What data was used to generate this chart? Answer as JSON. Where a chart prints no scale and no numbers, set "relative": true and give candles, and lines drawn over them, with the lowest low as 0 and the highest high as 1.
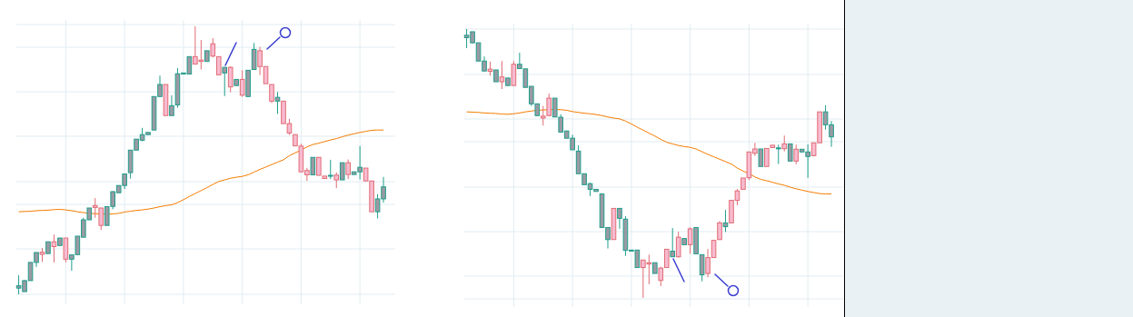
{
  "chart_data": [
    {
      "type": "candlestick",
      "relative": true,
      "grid": true,
      "categories": [
        null,
        null,
        null,
        null,
        null,
        null,
        null,
        null,
        null,
        null,
        null,
        null,
        null,
        null,
        null,
        null,
        null,
        null,
        null,
        null,
        null,
        null,
        null,
        null,
        null,
        null,
        null,
        null,
        null,
        null,
        null,
        null,
        null,
        null,
        null,
        null,
        null,
        null,
        null,
        null,
        null,
        null,
        null,
        null,
        null,
        null,
        null,
        null,
        null,
        null,
        null,
        null,
        null,
        null,
        null,
        null,
        null,
        null,
        null,
        null,
        null,
        null,
        null
      ],
      "ohlc": [
        [
          0.023,
          0.071,
          0,
          0.032
        ],
        [
          0.01,
          0.054,
          0.01,
          0.051
        ],
        [
          0.051,
          0.119,
          0.051,
          0.119
        ],
        [
          0.119,
          0.156,
          0.102,
          0.156
        ],
        [
          0.157,
          0.173,
          0.121,
          0.149
        ],
        [
          0.152,
          0.196,
          0.152,
          0.196
        ],
        [
          0.196,
          0.223,
          0.119,
          0.178
        ],
        [
          0.182,
          0.21,
          0.182,
          0.21
        ],
        [
          0.21,
          0.21,
          0.119,
          0.131
        ],
        [
          0.131,
          0.147,
          0.088,
          0.147
        ],
        [
          0.148,
          0.217,
          0.148,
          0.217
        ],
        [
          0.213,
          0.286,
          0.213,
          0.278
        ],
        [
          0.278,
          0.322,
          0.278,
          0.322
        ],
        [
          0.331,
          0.359,
          0.286,
          0.324
        ],
        [
          0.322,
          0.322,
          0.24,
          0.257
        ],
        [
          0.257,
          0.327,
          0.257,
          0.327
        ],
        [
          0.328,
          0.385,
          0.317,
          0.383
        ],
        [
          0.379,
          0.406,
          0.379,
          0.406
        ],
        [
          0.406,
          0.449,
          0.393,
          0.449
        ],
        [
          0.454,
          0.538,
          0.432,
          0.538
        ],
        [
          0.538,
          0.579,
          0.538,
          0.579
        ],
        [
          0.575,
          0.621,
          0.571,
          0.596
        ],
        [
          0.596,
          0.604,
          0.596,
          0.604
        ],
        [
          0.613,
          0.738,
          0.613,
          0.738
        ],
        [
          0.738,
          0.816,
          0.738,
          0.783
        ],
        [
          0.783,
          0.783,
          0.667,
          0.667
        ],
        [
          0.667,
          0.743,
          0.667,
          0.704
        ],
        [
          0.707,
          0.844,
          0.696,
          0.823
        ],
        [
          0.822,
          0.826,
          0.822,
          0.826
        ],
        [
          0.822,
          0.887,
          0.822,
          0.887
        ],
        [
          0.887,
          1,
          0.859,
          0.859
        ],
        [
          0.874,
          0.949,
          0.839,
          0.869
        ],
        [
          0.869,
          0.909,
          0.869,
          0.909
        ],
        [
          0.935,
          0.956,
          0.884,
          0.889
        ],
        [
          0.887,
          0.887,
          0.819,
          0.819
        ],
        [
          0.826,
          0.847,
          0.74,
          0.847
        ],
        [
          0.847,
          0.85,
          0.754,
          0.774
        ],
        [
          0.779,
          0.802,
          0.779,
          0.802
        ],
        [
          0.802,
          0.836,
          0.737,
          0.743
        ],
        [
          0.738,
          0.836,
          0.738,
          0.836
        ],
        [
          0.839,
          0.938,
          0.839,
          0.914
        ],
        [
          0.909,
          0.923,
          0.818,
          0.85
        ],
        [
          0.85,
          0.85,
          0.786,
          0.786
        ],
        [
          0.783,
          0.783,
          0.714,
          0.721
        ],
        [
          0.721,
          0.755,
          0.673,
          0.735
        ],
        [
          0.721,
          0.721,
          0.637,
          0.637
        ],
        [
          0.637,
          0.655,
          0.595,
          0.602
        ],
        [
          0.596,
          0.596,
          0.554,
          0.554
        ],
        [
          0.553,
          0.562,
          0.457,
          0.457
        ],
        [
          0.462,
          0.472,
          0.423,
          0.446
        ],
        [
          0.446,
          0.511,
          0.446,
          0.511
        ],
        [
          0.511,
          0.511,
          0.444,
          0.444
        ],
        [
          0.441,
          0.441,
          0.432,
          0.432
        ],
        [
          0.442,
          0.502,
          0.43,
          0.444
        ],
        [
          0.445,
          0.455,
          0.396,
          0.427
        ],
        [
          0.427,
          0.491,
          0.427,
          0.491
        ],
        [
          0.491,
          0.503,
          0.43,
          0.447
        ],
        [
          0.447,
          0.457,
          0.447,
          0.457
        ],
        [
          0.457,
          0.553,
          0.429,
          0.474
        ],
        [
          0.471,
          0.471,
          0.423,
          0.423
        ],
        [
          0.423,
          0.423,
          0.308,
          0.308
        ],
        [
          0.308,
          0.374,
          0.283,
          0.356
        ],
        [
          0.356,
          0.438,
          0.342,
          0.401
        ]
      ],
      "series": [
        {
          "type": "line",
          "color": "#f57c00",
          "values": [
            0.308,
            0.309,
            0.31,
            0.312,
            0.313,
            0.314,
            0.316,
            0.317,
            0.315,
            0.312,
            0.308,
            0.305,
            0.302,
            0.301,
            0.3,
            0.299,
            0.3,
            0.302,
            0.307,
            0.31,
            0.313,
            0.315,
            0.318,
            0.322,
            0.327,
            0.331,
            0.334,
            0.342,
            0.353,
            0.365,
            0.376,
            0.387,
            0.398,
            0.41,
            0.421,
            0.427,
            0.433,
            0.437,
            0.44,
            0.446,
            0.456,
            0.466,
            0.475,
            0.484,
            0.493,
            0.502,
            0.517,
            0.528,
            0.538,
            0.55,
            0.559,
            0.564,
            0.57,
            0.576,
            0.581,
            0.588,
            0.594,
            0.599,
            0.604,
            0.608,
            0.612,
            0.613,
            0.613
          ]
        }
      ]
    },
    {
      "type": "candlestick",
      "relative": true,
      "grid": true,
      "categories": [
        null,
        null,
        null,
        null,
        null,
        null,
        null,
        null,
        null,
        null,
        null,
        null,
        null,
        null,
        null,
        null,
        null,
        null,
        null,
        null,
        null,
        null,
        null,
        null,
        null,
        null,
        null,
        null,
        null,
        null,
        null,
        null,
        null,
        null,
        null,
        null,
        null,
        null,
        null,
        null,
        null,
        null,
        null,
        null,
        null,
        null,
        null,
        null,
        null,
        null,
        null,
        null,
        null,
        null,
        null,
        null,
        null,
        null,
        null,
        null,
        null,
        null,
        null
      ],
      "ohlc": [
        [
          0.977,
          1,
          0.929,
          0.968
        ],
        [
          0.99,
          0.99,
          0.946,
          0.949
        ],
        [
          0.949,
          0.949,
          0.881,
          0.881
        ],
        [
          0.881,
          0.898,
          0.844,
          0.844
        ],
        [
          0.843,
          0.879,
          0.827,
          0.851
        ],
        [
          0.848,
          0.848,
          0.804,
          0.804
        ],
        [
          0.804,
          0.881,
          0.777,
          0.822
        ],
        [
          0.818,
          0.818,
          0.79,
          0.79
        ],
        [
          0.79,
          0.881,
          0.79,
          0.869
        ],
        [
          0.869,
          0.912,
          0.853,
          0.853
        ],
        [
          0.852,
          0.852,
          0.783,
          0.783
        ],
        [
          0.787,
          0.787,
          0.714,
          0.722
        ],
        [
          0.722,
          0.722,
          0.678,
          0.678
        ],
        [
          0.669,
          0.714,
          0.641,
          0.676
        ],
        [
          0.678,
          0.76,
          0.678,
          0.743
        ],
        [
          0.743,
          0.743,
          0.673,
          0.673
        ],
        [
          0.672,
          0.683,
          0.615,
          0.617
        ],
        [
          0.621,
          0.621,
          0.594,
          0.594
        ],
        [
          0.594,
          0.607,
          0.551,
          0.551
        ],
        [
          0.546,
          0.568,
          0.462,
          0.462
        ],
        [
          0.462,
          0.462,
          0.421,
          0.421
        ],
        [
          0.425,
          0.429,
          0.379,
          0.404
        ],
        [
          0.404,
          0.404,
          0.396,
          0.396
        ],
        [
          0.387,
          0.387,
          0.262,
          0.262
        ],
        [
          0.262,
          0.262,
          0.184,
          0.217
        ],
        [
          0.217,
          0.333,
          0.217,
          0.333
        ],
        [
          0.333,
          0.333,
          0.257,
          0.296
        ],
        [
          0.293,
          0.304,
          0.156,
          0.177
        ],
        [
          0.178,
          0.178,
          0.174,
          0.174
        ],
        [
          0.178,
          0.178,
          0.113,
          0.113
        ],
        [
          0.113,
          0.141,
          0,
          0.141
        ],
        [
          0.126,
          0.161,
          0.051,
          0.131
        ],
        [
          0.131,
          0.131,
          0.091,
          0.091
        ],
        [
          0.065,
          0.116,
          0.044,
          0.111
        ],
        [
          0.113,
          0.181,
          0.113,
          0.181
        ],
        [
          0.174,
          0.26,
          0.153,
          0.153
        ],
        [
          0.153,
          0.246,
          0.15,
          0.226
        ],
        [
          0.221,
          0.221,
          0.198,
          0.198
        ],
        [
          0.198,
          0.263,
          0.164,
          0.257
        ],
        [
          0.262,
          0.262,
          0.164,
          0.164
        ],
        [
          0.161,
          0.161,
          0.062,
          0.086
        ],
        [
          0.091,
          0.182,
          0.077,
          0.15
        ],
        [
          0.15,
          0.214,
          0.15,
          0.214
        ],
        [
          0.217,
          0.286,
          0.217,
          0.279
        ],
        [
          0.279,
          0.327,
          0.245,
          0.265
        ],
        [
          0.279,
          0.363,
          0.279,
          0.363
        ],
        [
          0.363,
          0.405,
          0.345,
          0.398
        ],
        [
          0.404,
          0.446,
          0.404,
          0.446
        ],
        [
          0.447,
          0.543,
          0.438,
          0.543
        ],
        [
          0.538,
          0.577,
          0.528,
          0.554
        ],
        [
          0.554,
          0.554,
          0.489,
          0.489
        ],
        [
          0.489,
          0.556,
          0.489,
          0.556
        ],
        [
          0.559,
          0.568,
          0.559,
          0.568
        ],
        [
          0.558,
          0.57,
          0.498,
          0.556
        ],
        [
          0.555,
          0.604,
          0.545,
          0.573
        ],
        [
          0.573,
          0.573,
          0.509,
          0.509
        ],
        [
          0.509,
          0.57,
          0.497,
          0.553
        ],
        [
          0.553,
          0.553,
          0.543,
          0.543
        ],
        [
          0.543,
          0.571,
          0.447,
          0.526
        ],
        [
          0.529,
          0.577,
          0.529,
          0.577
        ],
        [
          0.577,
          0.692,
          0.577,
          0.692
        ],
        [
          0.692,
          0.717,
          0.626,
          0.644
        ],
        [
          0.644,
          0.658,
          0.562,
          0.599
        ]
      ],
      "colors": [
        "#1f9e8c",
        "#1f9e8c",
        "#1f9e8c",
        "#1f9e8c",
        "#e06c75",
        "#1f9e8c",
        "#e06c75",
        "#1f9e8c",
        "#e06c75",
        "#1f9e8c",
        "#1f9e8c",
        "#1f9e8c",
        "#1f9e8c",
        "#e06c75",
        "#e06c75",
        "#1f9e8c",
        "#1f9e8c",
        "#1f9e8c",
        "#1f9e8c",
        "#1f9e8c",
        "#1f9e8c",
        "#1f9e8c",
        "#1f9e8c",
        "#1f9e8c",
        "#1f9e8c",
        "#e06c75",
        "#1f9e8c",
        "#1f9e8c",
        "#1f9e8c",
        "#1f9e8c",
        "#e06c75",
        "#e06c75",
        "#1f9e8c",
        "#e06c75",
        "#e06c75",
        "#1f9e8c",
        "#e06c75",
        "#1f9e8c",
        "#e06c75",
        "#1f9e8c",
        "#1f9e8c",
        "#e06c75",
        "#e06c75",
        "#e06c75",
        "#1f9e8c",
        "#e06c75",
        "#e06c75",
        "#e06c75",
        "#e06c75",
        "#e06c75",
        "#1f9e8c",
        "#e06c75",
        "#e06c75",
        "#1f9e8c",
        "#e06c75",
        "#1f9e8c",
        "#e06c75",
        "#1f9e8c",
        "#1f9e8c",
        "#e06c75",
        "#e06c75",
        "#1f9e8c",
        "#1f9e8c"
      ],
      "series": [
        {
          "type": "line",
          "color": "#f57c00",
          "values": [
            0.692,
            0.691,
            0.69,
            0.688,
            0.687,
            0.686,
            0.684,
            0.683,
            0.685,
            0.688,
            0.692,
            0.695,
            0.698,
            0.699,
            0.7,
            0.701,
            0.7,
            0.698,
            0.693,
            0.69,
            0.687,
            0.685,
            0.682,
            0.678,
            0.673,
            0.669,
            0.666,
            0.658,
            0.647,
            0.635,
            0.624,
            0.613,
            0.602,
            0.59,
            0.579,
            0.573,
            0.567,
            0.563,
            0.56,
            0.554,
            0.544,
            0.534,
            0.525,
            0.516,
            0.507,
            0.498,
            0.483,
            0.472,
            0.462,
            0.45,
            0.441,
            0.436,
            0.43,
            0.424,
            0.419,
            0.412,
            0.406,
            0.401,
            0.396,
            0.392,
            0.388,
            0.387,
            0.387
          ]
        }
      ]
    }
  ]
}
